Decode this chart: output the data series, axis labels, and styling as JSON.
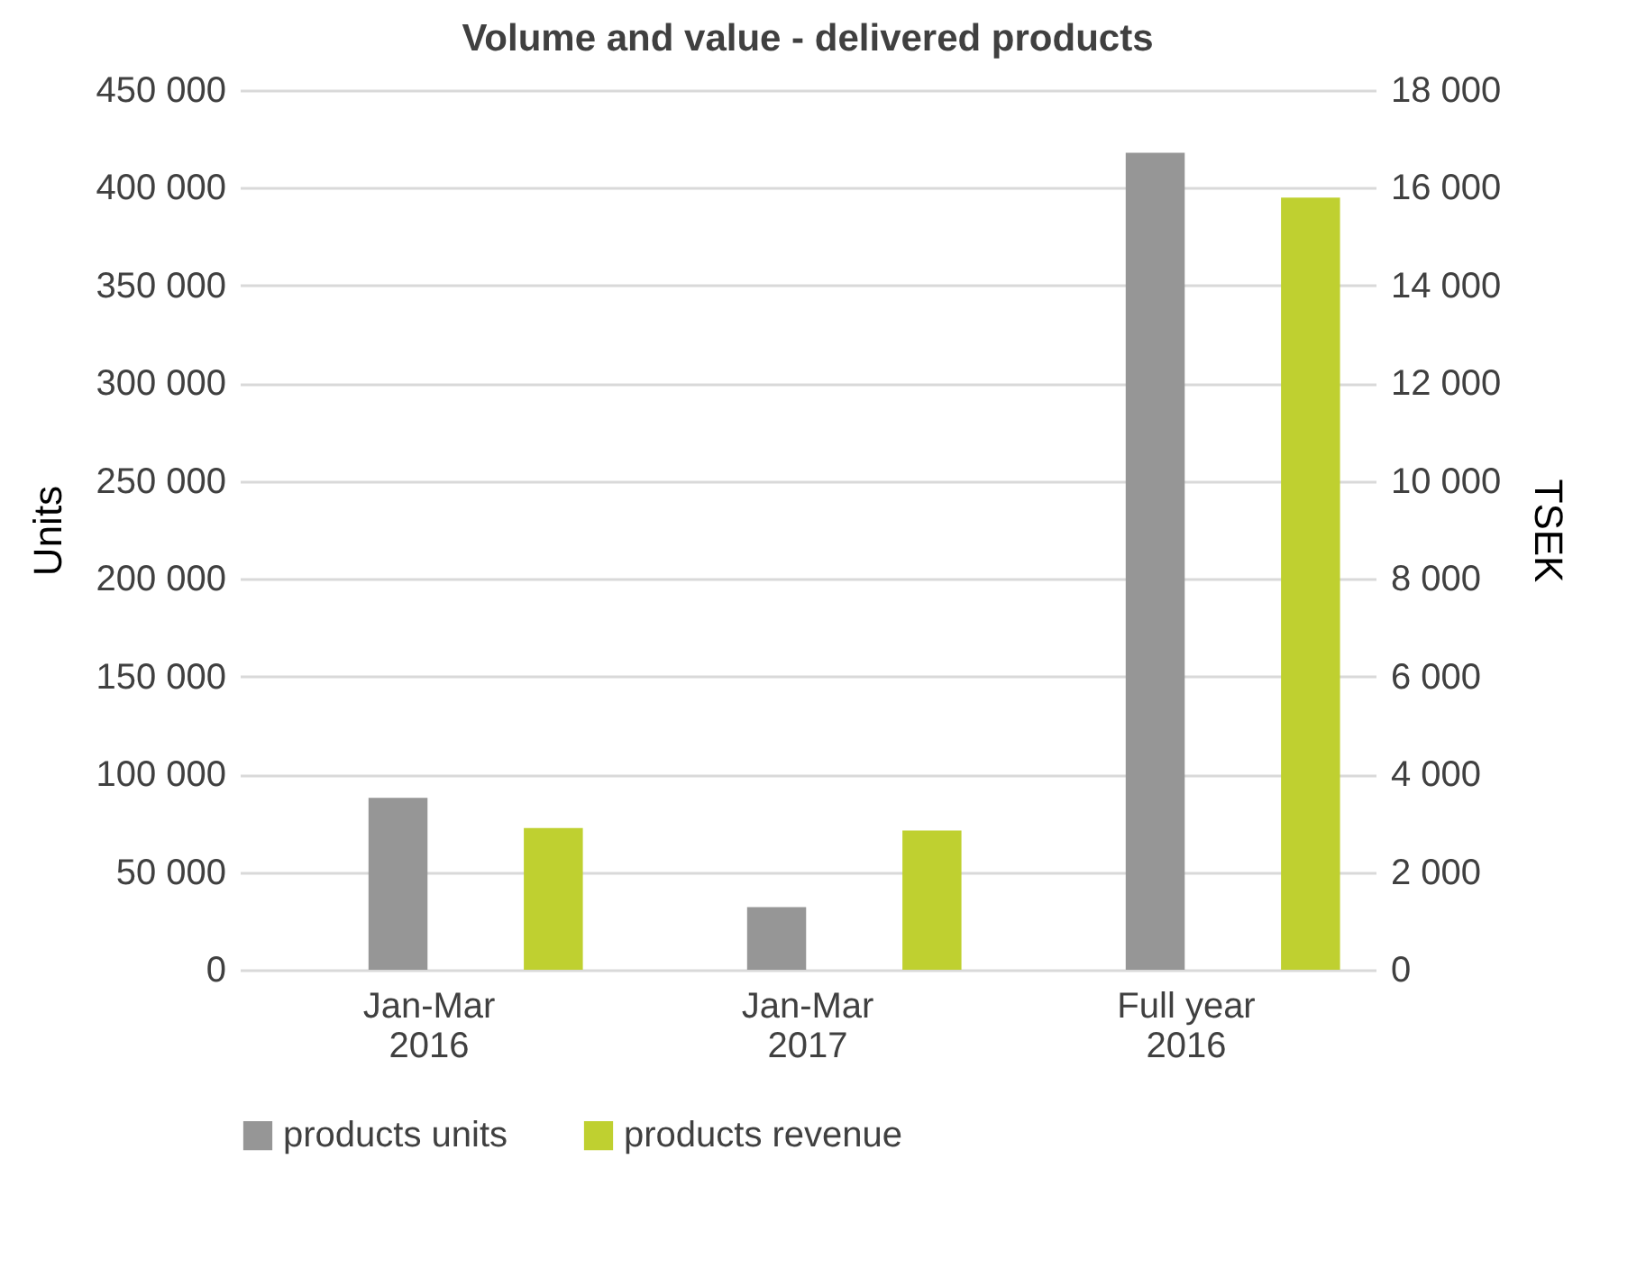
{
  "chart_data": {
    "type": "bar",
    "title": "Volume and value - delivered products",
    "ylabel": "Units",
    "y2label": "TSEK",
    "categories": [
      "Jan-Mar\n2016",
      "Jan-Mar\n2017",
      "Full year\n2016"
    ],
    "series": [
      {
        "name": "products units",
        "color": "#969696",
        "values": [
          88000,
          32000,
          418000
        ]
      },
      {
        "name": "products revenue",
        "color": "#bfd030",
        "values": [
          2900,
          2850,
          15800
        ],
        "axis": "y2"
      }
    ],
    "ylim": [
      0,
      450000
    ],
    "yticks": [
      {
        "value": 0,
        "label": "0"
      },
      {
        "value": 50000,
        "label": "50 000"
      },
      {
        "value": 100000,
        "label": "100 000"
      },
      {
        "value": 150000,
        "label": "150 000"
      },
      {
        "value": 200000,
        "label": "200 000"
      },
      {
        "value": 250000,
        "label": "250 000"
      },
      {
        "value": 300000,
        "label": "300 000"
      },
      {
        "value": 350000,
        "label": "350 000"
      },
      {
        "value": 400000,
        "label": "400 000"
      },
      {
        "value": 450000,
        "label": "450 000"
      }
    ],
    "y2lim": [
      0,
      18000
    ],
    "y2ticks": [
      {
        "value": 0,
        "label": "0"
      },
      {
        "value": 2000,
        "label": "2 000"
      },
      {
        "value": 4000,
        "label": "4 000"
      },
      {
        "value": 6000,
        "label": "6 000"
      },
      {
        "value": 8000,
        "label": "8 000"
      },
      {
        "value": 10000,
        "label": "10 000"
      },
      {
        "value": 12000,
        "label": "12 000"
      },
      {
        "value": 14000,
        "label": "14 000"
      },
      {
        "value": 16000,
        "label": "16 000"
      },
      {
        "value": 18000,
        "label": "18 000"
      }
    ],
    "grid": "y",
    "legend": "bottom"
  }
}
